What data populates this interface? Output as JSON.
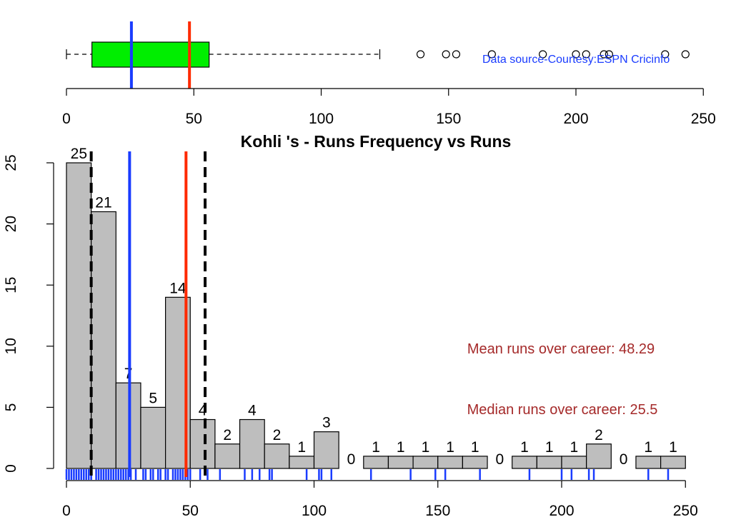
{
  "chart_data": [
    {
      "type": "boxplot",
      "orientation": "horizontal",
      "stats": {
        "min": 0,
        "q1": 10,
        "median": 25.5,
        "q3": 56,
        "whisker_high": 123
      },
      "outliers": [
        139,
        149,
        153,
        167,
        187,
        200,
        204,
        211,
        213,
        235,
        243
      ],
      "mean_line": 48.29,
      "median_line": 25.5,
      "box_color": "#00ee00",
      "mean_color": "#ff2a00",
      "median_color": "#1a3cff",
      "xlim": [
        0,
        250
      ],
      "x_ticks": [
        "0",
        "50",
        "100",
        "150",
        "200",
        "250"
      ],
      "annotation": "Data source-Courtesy:ESPN Cricinfo"
    },
    {
      "type": "bar",
      "title": "Kohli 's  - Runs Frequency vs Runs",
      "xlim": [
        0,
        250
      ],
      "ylim": [
        0,
        25
      ],
      "bin_edges": [
        0,
        10,
        20,
        30,
        40,
        50,
        60,
        70,
        80,
        90,
        100,
        110,
        120,
        130,
        140,
        150,
        160,
        170,
        180,
        190,
        200,
        210,
        220,
        230,
        240,
        250
      ],
      "values": [
        25,
        21,
        7,
        5,
        14,
        4,
        2,
        4,
        2,
        1,
        3,
        0,
        1,
        1,
        1,
        1,
        1,
        0,
        1,
        1,
        1,
        2,
        0,
        1,
        1
      ],
      "bar_labels": [
        "25",
        "21",
        "7",
        "5",
        "14",
        "4",
        "2",
        "4",
        "2",
        "1",
        "3",
        "0",
        "1",
        "1",
        "1",
        "1",
        "1",
        "0",
        "1",
        "1",
        "1",
        "2",
        "0",
        "1",
        "1"
      ],
      "bar_color": "#bebebe",
      "x_ticks": [
        "0",
        "50",
        "100",
        "150",
        "200",
        "250"
      ],
      "y_ticks": [
        "0",
        "5",
        "10",
        "15",
        "20",
        "25"
      ],
      "mean_line": 48.29,
      "median_line": 25.5,
      "quartile_lines": [
        10,
        56
      ],
      "mean_color": "#ff2a00",
      "median_color": "#1a3cff",
      "rug": [
        0,
        1,
        2,
        3,
        4,
        5,
        6,
        7,
        8,
        9,
        10,
        12,
        13,
        14,
        15,
        16,
        17,
        18,
        19,
        20,
        21,
        22,
        23,
        24,
        25,
        26,
        28,
        31,
        32,
        34,
        35,
        37,
        38,
        40,
        41,
        43,
        44,
        45,
        46,
        47,
        48,
        49,
        50,
        54,
        57,
        62,
        72,
        75,
        78,
        82,
        83,
        97,
        102,
        103,
        107,
        123,
        139,
        149,
        153,
        167,
        187,
        200,
        204,
        211,
        213,
        235,
        243
      ],
      "rug_color": "#1a3cff",
      "annotations": [
        "Mean runs over career: 48.29",
        "Median runs over career: 25.5"
      ]
    }
  ]
}
